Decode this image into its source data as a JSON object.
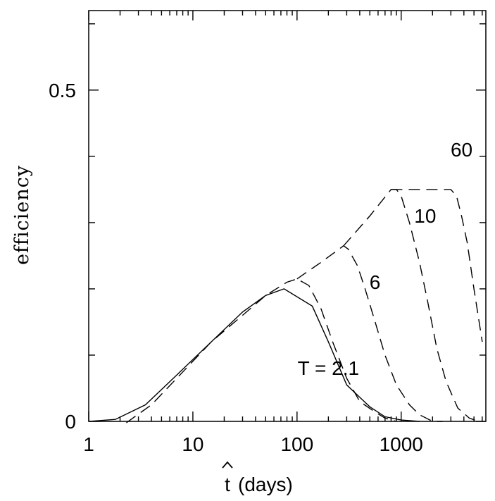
{
  "chart_data": {
    "type": "line",
    "title": "",
    "xlabel": "(days)",
    "xlabel_symbol": "t",
    "ylabel": "efficiency",
    "xscale": "log",
    "xlim": [
      1,
      6500
    ],
    "ylim": [
      0,
      0.62
    ],
    "grid": false,
    "x_ticks": [
      1,
      10,
      100,
      1000
    ],
    "x_tick_labels": [
      "1",
      "10",
      "100",
      "1000"
    ],
    "y_ticks": [
      0,
      0.5
    ],
    "y_tick_labels": [
      "0",
      "0.5"
    ],
    "series": [
      {
        "name": "T = 2.1",
        "style": "solid",
        "points": [
          [
            1,
            0.0
          ],
          [
            1.8,
            0.003
          ],
          [
            3.5,
            0.025
          ],
          [
            7,
            0.07
          ],
          [
            15,
            0.12
          ],
          [
            30,
            0.165
          ],
          [
            50,
            0.19
          ],
          [
            75,
            0.2
          ],
          [
            140,
            0.174
          ],
          [
            200,
            0.12
          ],
          [
            300,
            0.055
          ],
          [
            500,
            0.022
          ],
          [
            700,
            0.007
          ],
          [
            1000,
            0.002
          ],
          [
            1500,
            0.0
          ]
        ]
      },
      {
        "name": "T = 2.1",
        "style": "dashed",
        "points": [
          [
            2.3,
            -0.002
          ],
          [
            4,
            0.025
          ],
          [
            7,
            0.065
          ],
          [
            15,
            0.12
          ],
          [
            30,
            0.16
          ],
          [
            50,
            0.19
          ],
          [
            80,
            0.21
          ],
          [
            100,
            0.215
          ],
          [
            130,
            0.205
          ],
          [
            170,
            0.17
          ],
          [
            220,
            0.12
          ],
          [
            300,
            0.065
          ],
          [
            400,
            0.03
          ],
          [
            550,
            0.015
          ],
          [
            700,
            0.005
          ],
          [
            900,
            0.0
          ]
        ]
      },
      {
        "name": "6",
        "style": "dashed",
        "points": [
          [
            100,
            0.215
          ],
          [
            170,
            0.24
          ],
          [
            280,
            0.265
          ],
          [
            310,
            0.26
          ],
          [
            380,
            0.235
          ],
          [
            450,
            0.2
          ],
          [
            550,
            0.155
          ],
          [
            700,
            0.1
          ],
          [
            900,
            0.055
          ],
          [
            1200,
            0.025
          ],
          [
            1500,
            0.01
          ],
          [
            2000,
            0.0
          ],
          [
            2500,
            0.0
          ]
        ]
      },
      {
        "name": "10",
        "style": "dashed",
        "points": [
          [
            280,
            0.265
          ],
          [
            500,
            0.31
          ],
          [
            800,
            0.35
          ],
          [
            900,
            0.35
          ],
          [
            1000,
            0.34
          ],
          [
            1200,
            0.3
          ],
          [
            1500,
            0.24
          ],
          [
            1800,
            0.18
          ],
          [
            2200,
            0.11
          ],
          [
            2700,
            0.06
          ],
          [
            3500,
            0.02
          ],
          [
            4500,
            0.005
          ],
          [
            5500,
            0.0
          ]
        ]
      },
      {
        "name": "60",
        "style": "dashed",
        "points": [
          [
            800,
            0.35
          ],
          [
            1500,
            0.35
          ],
          [
            2500,
            0.35
          ],
          [
            3000,
            0.35
          ],
          [
            3400,
            0.34
          ],
          [
            3800,
            0.31
          ],
          [
            4300,
            0.27
          ],
          [
            5000,
            0.2
          ],
          [
            6000,
            0.12
          ]
        ]
      }
    ],
    "annotations": [
      {
        "text": "T = 2.1",
        "x": 200,
        "y": 0.07
      },
      {
        "text": "6",
        "x": 560,
        "y": 0.2
      },
      {
        "text": "10",
        "x": 1700,
        "y": 0.3
      },
      {
        "text": "60",
        "x": 3800,
        "y": 0.4
      }
    ]
  }
}
